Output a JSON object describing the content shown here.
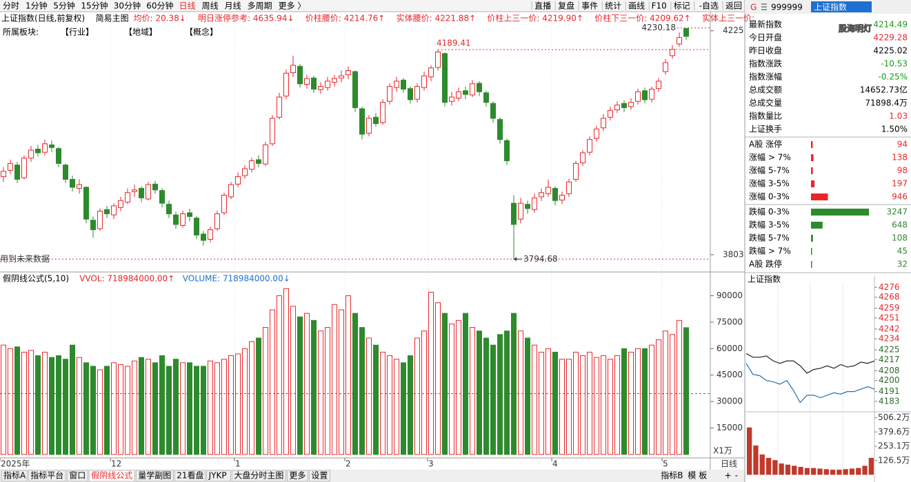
{
  "toolbar": {
    "periods": [
      "分时",
      "1分钟",
      "5分钟",
      "15分钟",
      "30分钟",
      "60分钟",
      "日线",
      "周线",
      "月线",
      "多周期",
      "更多 〉"
    ],
    "active_color": "#e8262a",
    "tools": [
      "直播",
      "复盘",
      "事件",
      "统计",
      "画线",
      "F10",
      "标记",
      "-自选",
      "返回"
    ]
  },
  "info_bar": [
    {
      "text": "上证指数(日线,前复权)",
      "color": "#000000"
    },
    {
      "text": "简易主图",
      "color": "#000000"
    },
    {
      "text": "均价: 20.38↓",
      "color": "#e8262a"
    },
    {
      "text": "明日涨停参考: 4635.94↓",
      "color": "#e8262a"
    },
    {
      "text": "价柱腰价: 4214.76↑",
      "color": "#e8262a"
    },
    {
      "text": "实体腰价: 4221.88↑",
      "color": "#e8262a"
    },
    {
      "text": "价柱上三一价: 4219.90↑",
      "color": "#e8262a"
    },
    {
      "text": "价柱下三一价: 4209.62↑",
      "color": "#e8262a"
    },
    {
      "text": "实体上三一价:",
      "color": "#e8262a"
    }
  ],
  "sector_bar": [
    "所属板块:",
    "【行业】",
    "【地域】",
    "【概念】"
  ],
  "future_data_note": "用到未来数据",
  "volume_header": [
    {
      "text": "假阴线公式(5,10)",
      "color": "#000000"
    },
    {
      "text": "VVOL: 718984000.00↑",
      "color": "#e8262a"
    },
    {
      "text": "VOLUME: 718984000.00↓",
      "color": "#1e6fd0"
    }
  ],
  "volume_unit": "X1万",
  "period_label": "日线",
  "bottom_tabs": {
    "left": [
      "指标A",
      "指标平台",
      "窗口",
      "假阴线公式",
      "量学副图",
      "21看盘",
      "JYKP",
      "大盘分时主图",
      "更多",
      "设置"
    ],
    "active": "假阴线公式",
    "right": [
      "指标B",
      "模 板",
      "+",
      "-"
    ]
  },
  "side_panel": {
    "prefix": "G",
    "code": "999999",
    "name": "上证指数",
    "watermark": "股海明灯",
    "quote": [
      {
        "label": "最新指数",
        "value": "4214.49",
        "color": "#1a9a1a"
      },
      {
        "label": "今日开盘",
        "value": "4229.28",
        "color": "#e8262a"
      },
      {
        "label": "昨日收盘",
        "value": "4225.02",
        "color": "#000000"
      },
      {
        "label": "指数涨跌",
        "value": "-10.53",
        "color": "#1a9a1a"
      },
      {
        "label": "指数涨幅",
        "value": "-0.25%",
        "color": "#1a9a1a"
      },
      {
        "label": "总成交额",
        "value": "14652.73亿",
        "color": "#000000"
      },
      {
        "label": "总成交量",
        "value": "71898.4万",
        "color": "#000000"
      },
      {
        "label": "指数量比",
        "value": "1.03",
        "color": "#e8262a"
      },
      {
        "label": "上证换手",
        "value": "1.50%",
        "color": "#000000"
      }
    ]
  },
  "chart_data": [
    {
      "type": "candlestick",
      "title": "上证指数(日线,前复权)",
      "up_color": "#e8262a",
      "down_color": "#2d8a2d",
      "categories": [
        "2025年",
        null,
        null,
        null,
        null,
        null,
        null,
        null,
        null,
        null,
        null,
        null,
        null,
        null,
        null,
        null,
        "12",
        null,
        null,
        null,
        null,
        null,
        null,
        null,
        null,
        null,
        null,
        null,
        null,
        null,
        null,
        null,
        null,
        null,
        "1",
        null,
        null,
        null,
        null,
        null,
        null,
        null,
        null,
        null,
        null,
        null,
        null,
        null,
        null,
        null,
        "2",
        null,
        null,
        null,
        null,
        null,
        null,
        null,
        null,
        null,
        null,
        null,
        "3",
        null,
        null,
        null,
        null,
        null,
        null,
        null,
        null,
        null,
        null,
        null,
        null,
        null,
        null,
        null,
        null,
        null,
        "4",
        null,
        null,
        null,
        null,
        null,
        null,
        null,
        null,
        null,
        null,
        null,
        null,
        null,
        null,
        null,
        "5",
        null,
        null,
        null
      ],
      "open": [
        3950,
        3962,
        3972,
        3948,
        3985,
        4002,
        3996,
        4010,
        4003,
        3972,
        3945,
        3928,
        3930,
        3868,
        3852,
        3888,
        3878,
        3892,
        3902,
        3922,
        3928,
        3908,
        3936,
        3924,
        3898,
        3878,
        3858,
        3882,
        3872,
        3842,
        3832,
        3852,
        3882,
        3912,
        3936,
        3952,
        3964,
        3982,
        3974,
        4012,
        4062,
        4102,
        4146,
        4158,
        4124,
        4136,
        4114,
        4118,
        4128,
        4136,
        4142,
        4148,
        4078,
        4032,
        4062,
        4052,
        4092,
        4118,
        4132,
        4116,
        4096,
        4118,
        4138,
        4156,
        4182,
        4092,
        4098,
        4112,
        4104,
        4126,
        4108,
        4088,
        4058,
        4018,
        3900,
        3870,
        3898,
        3888,
        3912,
        3918,
        3928,
        3906,
        3918,
        3945,
        3976,
        3996,
        4022,
        4042,
        4062,
        4076,
        4088,
        4082,
        4092,
        4112,
        4096,
        4116,
        4148,
        4178,
        4200,
        4229.28
      ],
      "high": [
        3968,
        3982,
        3978,
        3990,
        4008,
        4010,
        4020,
        4018,
        4006,
        3975,
        3952,
        3945,
        3932,
        3875,
        3890,
        3895,
        3900,
        3912,
        3928,
        3935,
        3932,
        3940,
        3942,
        3928,
        3905,
        3884,
        3886,
        3890,
        3876,
        3848,
        3856,
        3886,
        3920,
        3940,
        3958,
        3972,
        3986,
        3990,
        4016,
        4066,
        4108,
        4152,
        4178,
        4162,
        4142,
        4140,
        4128,
        4138,
        4142,
        4150,
        4158,
        4150,
        4082,
        4066,
        4070,
        4096,
        4126,
        4138,
        4136,
        4120,
        4126,
        4148,
        4160,
        4189.41,
        4184,
        4110,
        4118,
        4120,
        4132,
        4130,
        4112,
        4092,
        4062,
        4022,
        3915,
        3910,
        3905,
        3918,
        3928,
        3945,
        3932,
        3922,
        3946,
        3980,
        4000,
        4026,
        4046,
        4068,
        4082,
        4092,
        4094,
        4098,
        4116,
        4118,
        4120,
        4136,
        4172,
        4198,
        4222,
        4230.18
      ],
      "low": [
        3940,
        3955,
        3938,
        3945,
        3978,
        3988,
        3990,
        3996,
        3968,
        3938,
        3922,
        3918,
        3862,
        3835,
        3848,
        3872,
        3870,
        3885,
        3898,
        3912,
        3902,
        3905,
        3918,
        3892,
        3872,
        3852,
        3854,
        3866,
        3832,
        3820,
        3826,
        3848,
        3878,
        3908,
        3930,
        3946,
        3958,
        3968,
        3970,
        4008,
        4058,
        4096,
        4138,
        4118,
        4116,
        4108,
        4106,
        4112,
        4120,
        4128,
        4134,
        4072,
        4020,
        4026,
        4044,
        4048,
        4086,
        4110,
        4108,
        4088,
        4090,
        4112,
        4130,
        4150,
        4082,
        4084,
        4092,
        4096,
        4100,
        4102,
        4082,
        4052,
        4012,
        3972,
        3794.68,
        3862,
        3880,
        3882,
        3904,
        3912,
        3896,
        3898,
        3912,
        3940,
        3970,
        3990,
        4016,
        4036,
        4056,
        4070,
        4072,
        4076,
        4086,
        4088,
        4090,
        4110,
        4142,
        4172,
        4195,
        4208
      ],
      "close": [
        3960,
        3975,
        3945,
        3985,
        4000,
        3995,
        4012,
        4005,
        3975,
        3945,
        3930,
        3935,
        3870,
        3850,
        3885,
        3880,
        3895,
        3905,
        3920,
        3925,
        3910,
        3935,
        3925,
        3900,
        3880,
        3860,
        3880,
        3875,
        3840,
        3830,
        3850,
        3880,
        3915,
        3935,
        3950,
        3965,
        3980,
        3975,
        4010,
        4060,
        4100,
        4145,
        4160,
        4125,
        4135,
        4115,
        4120,
        4130,
        4135,
        4140,
        4150,
        4080,
        4030,
        4060,
        4050,
        4090,
        4120,
        4130,
        4115,
        4095,
        4120,
        4140,
        4155,
        4185,
        4090,
        4100,
        4110,
        4105,
        4125,
        4110,
        4090,
        4060,
        4020,
        3980,
        3860,
        3900,
        3890,
        3910,
        3920,
        3930,
        3905,
        3915,
        3940,
        3975,
        3995,
        4020,
        4040,
        4060,
        4075,
        4085,
        4080,
        4090,
        4110,
        4095,
        4115,
        4130,
        4165,
        4190,
        4212,
        4214.49
      ],
      "ylim": [
        3773,
        4257
      ],
      "yticks": [
        3803,
        4225
      ],
      "marked_high": 4189.41,
      "marked_low": 3794.68,
      "marked_recent_high": 4230.18,
      "marker_color": "#e8262a"
    },
    {
      "type": "bar",
      "title": "假阴线公式(5,10)",
      "values": [
        62000,
        60000,
        61000,
        58000,
        59000,
        56000,
        58000,
        55000,
        56000,
        54000,
        62000,
        55000,
        52000,
        50000,
        48000,
        50000,
        52000,
        51000,
        50000,
        53000,
        55000,
        54000,
        52000,
        56000,
        50000,
        54000,
        52000,
        52000,
        50000,
        50000,
        53000,
        52000,
        54000,
        56000,
        57000,
        60000,
        64000,
        66000,
        72000,
        82000,
        90000,
        94000,
        84000,
        78000,
        80000,
        76000,
        70000,
        72000,
        85000,
        82000,
        90000,
        80000,
        72000,
        66000,
        62000,
        58000,
        56000,
        54000,
        52000,
        56000,
        66000,
        70000,
        92000,
        86000,
        80000,
        74000,
        76000,
        80000,
        72000,
        70000,
        66000,
        62000,
        68000,
        70000,
        80000,
        70000,
        66000,
        62000,
        58000,
        60000,
        58000,
        54000,
        54000,
        58000,
        56000,
        58000,
        55000,
        56000,
        54000,
        56000,
        60000,
        58000,
        60000,
        60000,
        62000,
        65000,
        70000,
        68000,
        76000,
        71898.4
      ],
      "ylim": [
        0,
        101500
      ],
      "yticks": [
        15000,
        30000,
        45000,
        60000,
        75000,
        90000
      ],
      "ref_line": 34500,
      "ref_color": "#e8262a"
    },
    {
      "type": "hbar",
      "categories": [
        "A股 涨停",
        "涨幅 > 7%",
        "涨幅 5-7%",
        "涨幅 3-5%",
        "涨幅 0-3%",
        "跌幅 0-3%",
        "跌幅 3-5%",
        "跌幅 5-7%",
        "跌幅 > 7%",
        "A股 跌停"
      ],
      "values": [
        94,
        138,
        98,
        197,
        946,
        3247,
        648,
        108,
        45,
        32
      ],
      "colors": [
        "#e8262a",
        "#e8262a",
        "#e8262a",
        "#e8262a",
        "#e8262a",
        "#2d8a2d",
        "#2d8a2d",
        "#2d8a2d",
        "#2d8a2d",
        "#2d8a2d"
      ]
    },
    {
      "type": "line",
      "title": "上证指数",
      "series": [
        {
          "color": "#222222",
          "values": [
            4222,
            4219,
            4219,
            4220,
            4216,
            4214,
            4216,
            4216,
            4212,
            4206,
            4209,
            4210,
            4212,
            4210,
            4213,
            4211,
            4212,
            4215,
            4214,
            4216
          ]
        },
        {
          "color": "#1e6fb5",
          "values": [
            4214,
            4205,
            4204,
            4200,
            4199,
            4197,
            4200,
            4192,
            4182,
            4188,
            4188,
            4186,
            4188,
            4190,
            4189,
            4191,
            4191,
            4193,
            4195,
            4193
          ]
        }
      ],
      "ylim": [
        4179,
        4279
      ],
      "yticks": [
        4276,
        4268,
        4259,
        4251,
        4242,
        4234,
        4225,
        4217,
        4208,
        4200,
        4191,
        4183
      ],
      "up_color": "#e8262a",
      "down_color": "#2d6a2d"
    },
    {
      "type": "bar",
      "values": [
        420,
        260,
        180,
        150,
        130,
        100,
        90,
        80,
        70,
        60,
        60,
        55,
        50,
        45,
        45,
        50,
        55,
        60,
        80,
        150
      ],
      "color": "#c0392b",
      "ylim": [
        0,
        547
      ],
      "yticks": [
        {
          "value": 126.5,
          "label": "126.5万"
        },
        {
          "value": 253.1,
          "label": "253.1万"
        },
        {
          "value": 379.6,
          "label": "379.6万"
        },
        {
          "value": 506.2,
          "label": "506.2万"
        }
      ]
    }
  ]
}
